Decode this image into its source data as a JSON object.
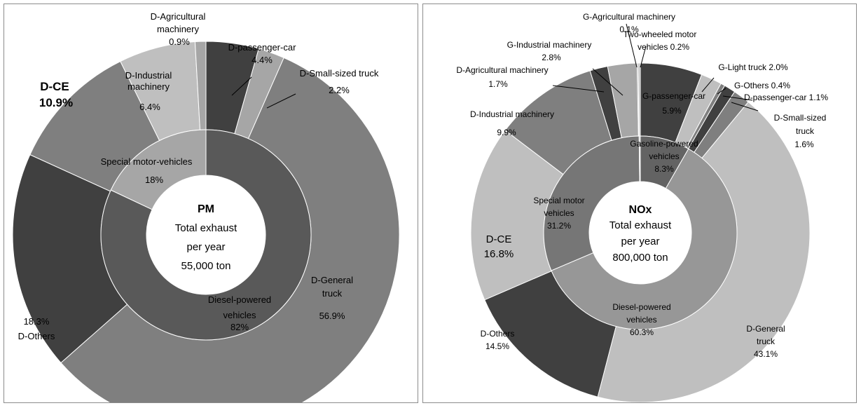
{
  "colors": {
    "diesel_inner": "#595959",
    "special_inner": "#a6a6a6",
    "gasoline_inner": "#636363",
    "light_gray": "#bfbfbf",
    "mid_gray": "#7f7f7f",
    "dark_gray": "#404040",
    "nox_diesel_inner": "#979797",
    "nox_special_inner": "#767676"
  },
  "chart_data": [
    {
      "type": "pie",
      "subtype": "donut-nested",
      "title": "PM",
      "center": {
        "title": "PM",
        "line1": "Total exhaust",
        "line2": "per year",
        "line3": "55,000 ton"
      },
      "inner_ring": [
        {
          "name": "Diesel-powered vehicles",
          "value": 82,
          "label": "82%"
        },
        {
          "name": "Special motor-vehicles",
          "value": 18,
          "label": "18%"
        }
      ],
      "outer_ring": [
        {
          "name": "D-passenger-car",
          "value": 4.4,
          "label": "4.4%"
        },
        {
          "name": "D-Small-sized truck",
          "value": 2.2,
          "label": "2.2%"
        },
        {
          "name": "D-General truck",
          "value": 56.9,
          "label": "56.9%"
        },
        {
          "name": "D-Others",
          "value": 18.3,
          "label": "18.3%"
        },
        {
          "name": "D-CE",
          "value": 10.9,
          "label": "10.9%"
        },
        {
          "name": "D-Industrial machinery",
          "value": 6.4,
          "label": "6.4%"
        },
        {
          "name": "D-Agricultural machinery",
          "value": 0.9,
          "label": "0.9%"
        }
      ],
      "text": {
        "d_agri_1": "D-Agricultural",
        "d_agri_2": "machinery",
        "d_agri_3": "0.9%",
        "d_pass_1": "D-passenger-car",
        "d_pass_2": "4.4%",
        "d_small_1": "D-Small-sized truck",
        "d_small_2": "2.2%",
        "d_ind_1": "D-Industrial",
        "d_ind_2": "machinery",
        "d_ind_3": "6.4%",
        "d_ce_1": "D-CE",
        "d_ce_2": "10.9%",
        "special_1": "Special motor-vehicles",
        "special_2": "18%",
        "d_general_1": "D-General",
        "d_general_2": "truck",
        "d_general_3": "56.9%",
        "diesel_1": "Diesel-powered",
        "diesel_2": "vehicles",
        "diesel_3": "82%",
        "d_others_1": "18.3%",
        "d_others_2": "D-Others"
      }
    },
    {
      "type": "pie",
      "subtype": "donut-nested",
      "title": "NOx",
      "center": {
        "title": "NOx",
        "line1": "Total exhaust",
        "line2": "per year",
        "line3": "800,000  ton"
      },
      "inner_ring": [
        {
          "name": "Gasoline-powered vehicles",
          "value": 8.3,
          "label": "8.3%"
        },
        {
          "name": "Diesel-powered vehicles",
          "value": 60.3,
          "label": "60.3%"
        },
        {
          "name": "Special motor vehicles",
          "value": 31.2,
          "label": "31.2%"
        },
        {
          "name": "Two-wheeled motor vehicles",
          "value": 0.2,
          "label": "0.2%"
        }
      ],
      "outer_ring": [
        {
          "name": "G-passenger-car",
          "value": 5.9,
          "label": "5.9%"
        },
        {
          "name": "G-Light truck",
          "value": 2.0,
          "label": "2.0%"
        },
        {
          "name": "G-Others",
          "value": 0.4,
          "label": "0.4%"
        },
        {
          "name": "D-passenger-car",
          "value": 1.1,
          "label": "1.1%"
        },
        {
          "name": "D-Small-sized truck",
          "value": 1.6,
          "label": "1.6%"
        },
        {
          "name": "D-General truck",
          "value": 43.1,
          "label": "43.1%"
        },
        {
          "name": "D-Others",
          "value": 14.5,
          "label": "14.5%"
        },
        {
          "name": "D-CE",
          "value": 16.8,
          "label": "16.8%"
        },
        {
          "name": "D-Industrial machinery",
          "value": 9.9,
          "label": "9.9%"
        },
        {
          "name": "D-Agricultural machinery",
          "value": 1.7,
          "label": "1.7%"
        },
        {
          "name": "G-Industrial machinery",
          "value": 2.8,
          "label": "2.8%"
        },
        {
          "name": "G-Agricultural machinery",
          "value": 0.1,
          "label": "0.1%"
        },
        {
          "name": "Two-wheeled motor vehicles",
          "value": 0.2,
          "label": "0.2%"
        }
      ],
      "text": {
        "g_agri_1": "G-Agricultural machinery",
        "g_agri_2": "0.1%",
        "two_wheel_1": "Two-wheeled motor",
        "two_wheel_2": "vehicles  0.2%",
        "g_ind_1": "G-Industrial machinery",
        "g_ind_2": "2.8%",
        "d_agri_1": "D-Agricultural machinery",
        "d_agri_2": "1.7%",
        "g_light": "G-Light truck 2.0%",
        "g_others": "G-Others 0.4%",
        "d_pass": "D-passenger-car 1.1%",
        "g_pass_1": "G-passenger-car",
        "g_pass_2": "5.9%",
        "d_small_1": "D-Small-sized",
        "d_small_2": "truck",
        "d_small_3": "1.6%",
        "d_ind_1": "D-Industrial   machinery",
        "d_ind_2": "9.9%",
        "gasoline_1": "Gasoline-powered",
        "gasoline_2": "vehicles",
        "gasoline_3": "8.3%",
        "special_1": "Special motor",
        "special_2": "vehicles",
        "special_3": "31.2%",
        "d_ce_1": "D-CE",
        "d_ce_2": "16.8%",
        "diesel_1": "Diesel-powered",
        "diesel_2": "vehicles",
        "diesel_3": "60.3%",
        "d_others_1": "D-Others",
        "d_others_2": "14.5%",
        "d_general_1": "D-General",
        "d_general_2": "truck",
        "d_general_3": "43.1%"
      }
    }
  ]
}
